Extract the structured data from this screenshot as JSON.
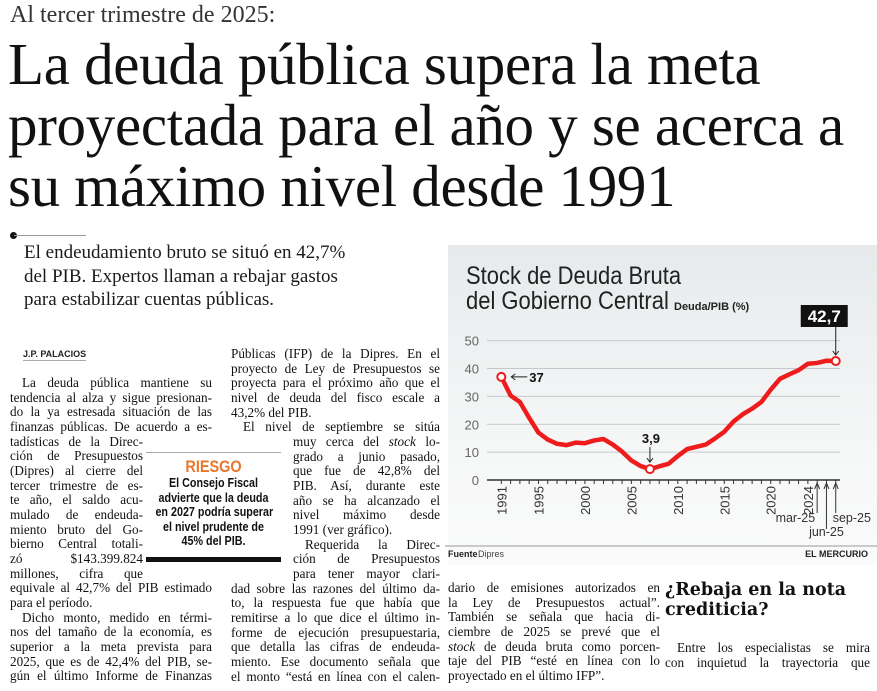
{
  "kicker": "Al tercer trimestre de 2025:",
  "headline": [
    "La deuda pública supera la meta",
    "proyectada para el año y se acerca a",
    "su máximo nivel desde 1991"
  ],
  "dek": [
    "El endeudamiento bruto se situó en 42,7%",
    "del PIB. Expertos llaman a rebajar gastos",
    "para estabilizar cuentas públicas."
  ],
  "byline": "J.P. PALACIOS",
  "columns": {
    "col1": [
      {
        "t": "La deuda pública mantiene su",
        "c": "ind"
      },
      {
        "t": "tendencia al alza y sigue presionan-"
      },
      {
        "t": "do la ya estresada situación de las"
      },
      {
        "t": "finanzas públicas. De acuerdo a es-"
      },
      {
        "t": "tadísticas de la Direc-",
        "n": 1
      },
      {
        "t": "ción de Presupuestos",
        "n": 1
      },
      {
        "t": "(Dipres) al cierre del",
        "n": 1
      },
      {
        "t": "tercer trimestre de es-",
        "n": 1
      },
      {
        "t": "te año, el saldo acu-",
        "n": 1
      },
      {
        "t": "mulado de endeuda-",
        "n": 1
      },
      {
        "t": "miento bruto del Go-",
        "n": 1
      },
      {
        "t": "bierno Central totali-",
        "n": 1
      },
      {
        "t": "zó $143.399.824",
        "n": 1
      },
      {
        "t": "millones, cifra que",
        "n": 1
      },
      {
        "t": "equivale al 42,7% del PIB estimado"
      },
      {
        "t": "para el período.",
        "c": "last"
      },
      {
        "t": "Dicho monto, medido en térmi-",
        "c": "ind"
      },
      {
        "t": "nos del tamaño de la economía, es"
      },
      {
        "t": "superior a la meta prevista para"
      },
      {
        "t": "2025, que es de 42,4% del PIB, se-"
      },
      {
        "t": "gún el último Informe de Finanzas"
      }
    ],
    "col2": [
      {
        "t": "Públicas (IFP) de la Dipres. En el"
      },
      {
        "t": "proyecto de Ley de Presupuestos se"
      },
      {
        "t": "proyecta para el próximo año que el"
      },
      {
        "t": "nivel de deuda del fisco escale a"
      },
      {
        "t": "43,2% del PIB.",
        "c": "last"
      },
      {
        "t": "El nivel de septiembre se sitúa",
        "c": "ind"
      },
      {
        "t": "muy cerca del ",
        "i": "stock",
        "p": " lo-",
        "n": 1
      },
      {
        "t": "grado a junio pasado,",
        "n": 1
      },
      {
        "t": "que fue de 42,8% del",
        "n": 1
      },
      {
        "t": "PIB. Así, durante este",
        "n": 1
      },
      {
        "t": "año se ha alcanzado el",
        "n": 1
      },
      {
        "t": "nivel máximo desde",
        "n": 1
      },
      {
        "t": "1991 (ver gráfico).",
        "n": 1,
        "c": "last"
      },
      {
        "t": "Requerida la Direc-",
        "n": 1,
        "c": "ind"
      },
      {
        "t": "ción de Presupuestos",
        "n": 1
      },
      {
        "t": "para tener mayor clari-",
        "n": 1
      },
      {
        "t": "dad sobre las razones del último da-"
      },
      {
        "t": "to, la respuesta fue que había que"
      },
      {
        "t": "remitirse a lo que dice el último in-"
      },
      {
        "t": "forme de ejecución presupuestaria,"
      },
      {
        "t": "que detalla las cifras de endeuda-"
      },
      {
        "t": "miento. Ese documento señala que"
      },
      {
        "t": "el monto “está en línea con el calen-"
      }
    ],
    "col3": [
      {
        "t": "dario de emisiones autorizados en"
      },
      {
        "t": "la Ley de Presupuestos actual”."
      },
      {
        "t": "También se señala que hacia di-"
      },
      {
        "t": "ciembre de 2025 se prevé que el"
      },
      {
        "t": "",
        "i": "stock",
        "p": " de deuda bruta como porcen-"
      },
      {
        "t": "taje del PIB “esté en línea con lo"
      },
      {
        "t": "proyectado en el último IFP”.",
        "c": "last"
      }
    ],
    "col4": [
      {
        "t": "Entre los especialistas se mira",
        "c": "ind"
      },
      {
        "t": "con inquietud la trayectoria que"
      }
    ]
  },
  "subhead": [
    "¿Rebaja en la nota",
    "crediticia?"
  ],
  "riesgo": {
    "label": "RIESGO",
    "lines": [
      "El Consejo Fiscal",
      "advierte que la deuda",
      "en 2027 podría superar",
      "el nivel prudente de",
      "45% del PIB."
    ],
    "accent": "#e8762a"
  },
  "chart_data": {
    "type": "line",
    "title": [
      "Stock de Deuda Bruta",
      "del Gobierno Central"
    ],
    "ylabel": "Deuda/PIB (%)",
    "ylim": [
      0,
      50
    ],
    "yticks": [
      0,
      10,
      20,
      30,
      40,
      50
    ],
    "grid": true,
    "x": [
      "1991",
      "1992",
      "1993",
      "1994",
      "1995",
      "1996",
      "1997",
      "1998",
      "1999",
      "2000",
      "2001",
      "2002",
      "2003",
      "2004",
      "2005",
      "2006",
      "2007",
      "2008",
      "2009",
      "2010",
      "2011",
      "2012",
      "2013",
      "2014",
      "2015",
      "2016",
      "2017",
      "2018",
      "2019",
      "2020",
      "2021",
      "2022",
      "2023",
      "2024",
      "mar-25",
      "jun-25",
      "sep-25"
    ],
    "values": [
      37,
      30.3,
      28,
      22.3,
      17,
      14.5,
      13,
      12.5,
      13.4,
      13.2,
      14.2,
      14.7,
      12.7,
      10.2,
      7,
      5,
      3.9,
      4.9,
      5.8,
      8.6,
      11.1,
      11.9,
      12.7,
      14.9,
      17.3,
      21,
      23.6,
      25.6,
      28,
      32.4,
      36.3,
      37.9,
      39.4,
      41.7,
      42,
      42.8,
      42.7
    ],
    "xtick_labels": [
      "1991",
      "1995",
      "2000",
      "2005",
      "2010",
      "2015",
      "2020",
      "2024"
    ],
    "month_labels": [
      "mar-25",
      "jun-25",
      "sep-25"
    ],
    "annotations": [
      {
        "x": "1991",
        "label": "37"
      },
      {
        "x": "2007",
        "label": "3,9"
      },
      {
        "x": "sep-25",
        "label": "42,7"
      }
    ],
    "line_color": "#ee1c1c",
    "source_label": "Fuente",
    "source": "Dipres",
    "brand": "EL MERCURIO"
  }
}
